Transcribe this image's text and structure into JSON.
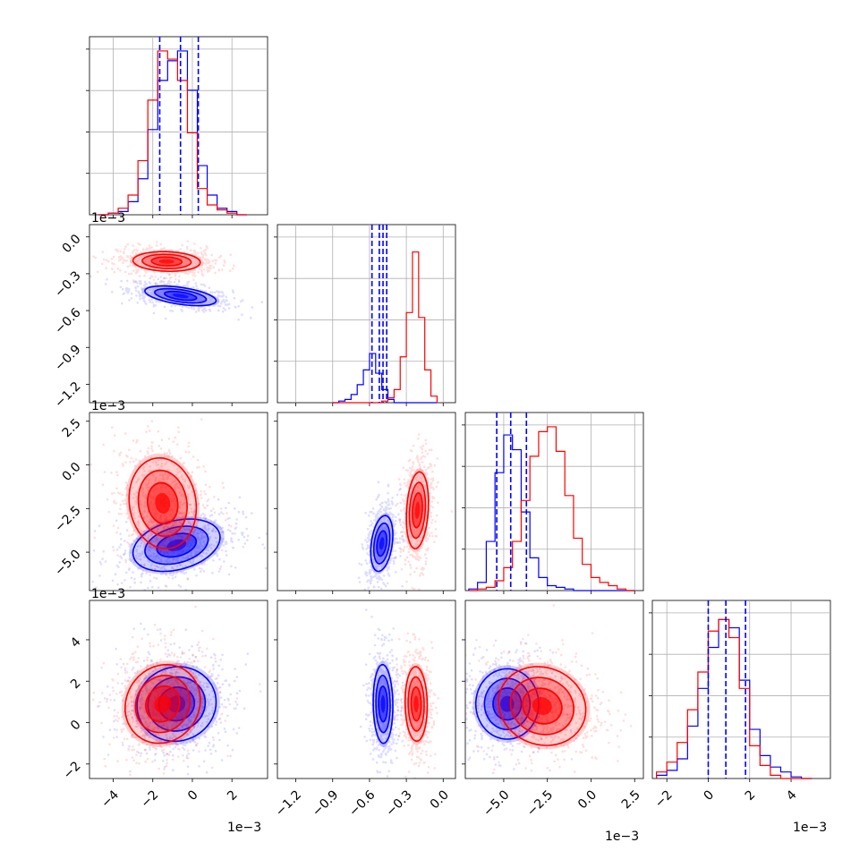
{
  "chart_data": {
    "type": "corner",
    "series": [
      {
        "name": "",
        "color": "#0000ff"
      },
      {
        "name": "",
        "color": "#ff0000"
      }
    ],
    "grid": true,
    "parameters": [
      {
        "range": [
          -5.2,
          3.8
        ],
        "ticks": [
          -4,
          -2,
          0,
          2
        ],
        "tick_labels": [
          "−4",
          "−2",
          "0",
          "2"
        ],
        "multiplier": "1e−3"
      },
      {
        "range": [
          -1.35,
          0.1
        ],
        "ticks": [
          -1.2,
          -0.9,
          -0.6,
          -0.3,
          0.0
        ],
        "tick_labels": [
          "−1.2",
          "−0.9",
          "−0.6",
          "−0.3",
          "0.0"
        ],
        "multiplier": "1e−3"
      },
      {
        "range": [
          -7.2,
          3.0
        ],
        "ticks": [
          -5.0,
          -2.5,
          0.0,
          2.5
        ],
        "tick_labels": [
          "−5.0",
          "−2.5",
          "0.0",
          "2.5"
        ],
        "multiplier": "1e−3"
      },
      {
        "range": [
          -2.7,
          5.9
        ],
        "ticks": [
          -2,
          0,
          2,
          4
        ],
        "tick_labels": [
          "−2",
          "0",
          "2",
          "4"
        ],
        "multiplier": "1e−3"
      }
    ],
    "histograms": [
      {
        "bins": [
          -4.5,
          -4.0,
          -3.5,
          -3.0,
          -2.5,
          -2.0,
          -1.5,
          -1.0,
          -0.5,
          0.0,
          0.5,
          1.0,
          1.5,
          2.0,
          2.5
        ],
        "blue": [
          0.0,
          0.01,
          0.02,
          0.08,
          0.22,
          0.52,
          0.82,
          0.94,
          1.0,
          0.76,
          0.3,
          0.12,
          0.04,
          0.02,
          0.0
        ],
        "red": [
          0.0,
          0.01,
          0.04,
          0.12,
          0.33,
          0.7,
          1.0,
          0.95,
          0.82,
          0.5,
          0.16,
          0.06,
          0.03,
          0.01,
          0.0
        ],
        "quantiles_blue": [
          -1.65,
          -0.6,
          0.3
        ]
      },
      {
        "bins": [
          -0.875,
          -0.825,
          -0.775,
          -0.725,
          -0.675,
          -0.625,
          -0.575,
          -0.525,
          -0.475,
          -0.425,
          -0.375,
          -0.325,
          -0.275,
          -0.225,
          -0.175,
          -0.125,
          -0.075
        ],
        "blue": [
          0.0,
          0.01,
          0.02,
          0.05,
          0.11,
          0.2,
          0.3,
          0.18,
          0.08,
          0.02,
          0.0,
          0.0,
          0.0,
          0.0,
          0.0,
          0.0,
          0.0
        ],
        "red": [
          0.0,
          0.0,
          0.0,
          0.0,
          0.0,
          0.0,
          0.0,
          0.0,
          0.01,
          0.03,
          0.08,
          0.28,
          0.55,
          0.92,
          0.52,
          0.2,
          0.04
        ],
        "quantiles_blue": [
          -0.58,
          -0.52,
          -0.49,
          -0.46
        ]
      },
      {
        "bins": [
          -6.75,
          -6.25,
          -5.75,
          -5.25,
          -4.75,
          -4.25,
          -3.75,
          -3.25,
          -2.75,
          -2.25,
          -1.75,
          -1.25,
          -0.75,
          -0.25,
          0.25,
          0.75,
          1.25,
          1.75,
          2.25
        ],
        "blue": [
          0.01,
          0.05,
          0.3,
          0.72,
          0.95,
          0.86,
          0.48,
          0.2,
          0.08,
          0.03,
          0.02,
          0.01,
          0.0,
          0.0,
          0.0,
          0.0,
          0.0,
          0.0,
          0.0
        ],
        "red": [
          0.0,
          0.01,
          0.02,
          0.06,
          0.14,
          0.3,
          0.55,
          0.82,
          0.97,
          1.0,
          0.85,
          0.58,
          0.32,
          0.16,
          0.08,
          0.05,
          0.03,
          0.01,
          0.0
        ],
        "quantiles_blue": [
          -5.4,
          -4.6,
          -3.7
        ]
      },
      {
        "bins": [
          -2.25,
          -1.75,
          -1.25,
          -0.75,
          -0.25,
          0.25,
          0.75,
          1.25,
          1.75,
          2.25,
          2.75,
          3.25,
          3.75,
          4.25,
          4.75
        ],
        "blue": [
          0.02,
          0.05,
          0.12,
          0.32,
          0.55,
          0.8,
          0.97,
          0.92,
          0.6,
          0.3,
          0.14,
          0.07,
          0.04,
          0.01,
          0.0
        ],
        "red": [
          0.04,
          0.1,
          0.22,
          0.42,
          0.65,
          0.9,
          0.97,
          0.86,
          0.55,
          0.2,
          0.08,
          0.02,
          0.0,
          0.0,
          0.0
        ],
        "quantiles_blue": [
          0.0,
          0.85,
          1.8
        ]
      }
    ],
    "pairs": [
      {
        "x": 0,
        "y": 1,
        "blue": {
          "mean": [
            -0.6,
            -0.48
          ],
          "sd": [
            0.9,
            0.04
          ],
          "rho": -0.5
        },
        "red": {
          "mean": [
            -1.3,
            -0.2
          ],
          "sd": [
            0.85,
            0.04
          ],
          "rho": -0.1
        }
      },
      {
        "x": 0,
        "y": 2,
        "blue": {
          "mean": [
            -0.8,
            -4.6
          ],
          "sd": [
            1.1,
            0.75
          ],
          "rho": 0.3
        },
        "red": {
          "mean": [
            -1.5,
            -2.2
          ],
          "sd": [
            0.85,
            1.3
          ],
          "rho": -0.1
        }
      },
      {
        "x": 1,
        "y": 2,
        "blue": {
          "mean": [
            -0.5,
            -4.5
          ],
          "sd": [
            0.045,
            0.8
          ],
          "rho": 0.3
        },
        "red": {
          "mean": [
            -0.21,
            -2.6
          ],
          "sd": [
            0.045,
            1.1
          ],
          "rho": 0.2
        }
      },
      {
        "x": 0,
        "y": 3,
        "blue": {
          "mean": [
            -0.8,
            0.9
          ],
          "sd": [
            1.0,
            0.9
          ],
          "rho": 0.05
        },
        "red": {
          "mean": [
            -1.5,
            0.9
          ],
          "sd": [
            0.95,
            0.95
          ],
          "rho": 0.1
        }
      },
      {
        "x": 1,
        "y": 3,
        "blue": {
          "mean": [
            -0.49,
            0.9
          ],
          "sd": [
            0.04,
            0.95
          ],
          "rho": -0.05
        },
        "red": {
          "mean": [
            -0.22,
            0.9
          ],
          "sd": [
            0.045,
            0.9
          ],
          "rho": -0.05
        }
      },
      {
        "x": 2,
        "y": 3,
        "blue": {
          "mean": [
            -4.8,
            0.9
          ],
          "sd": [
            0.9,
            0.85
          ],
          "rho": 0.0
        },
        "red": {
          "mean": [
            -2.8,
            0.8
          ],
          "sd": [
            1.25,
            0.95
          ],
          "rho": -0.1
        }
      }
    ]
  }
}
